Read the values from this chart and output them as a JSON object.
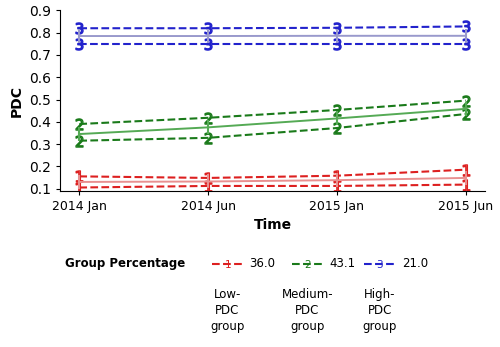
{
  "xlabel": "Time",
  "ylabel": "PDC",
  "ylim": [
    0.09,
    0.9
  ],
  "yticks": [
    0.1,
    0.2,
    0.3,
    0.4,
    0.5,
    0.6,
    0.7,
    0.8,
    0.9
  ],
  "x_labels": [
    "2014 Jan",
    "2014 Jun",
    "2015 Jan",
    "2015 Jun"
  ],
  "x_values": [
    0,
    1,
    2,
    3
  ],
  "groups": [
    {
      "name": "Low-PDC\ngroup",
      "percentage": "36.0",
      "dash_color": "#dd2020",
      "mean_color": "#e89090",
      "mean": [
        0.13,
        0.132,
        0.138,
        0.148
      ],
      "upper": [
        0.155,
        0.148,
        0.158,
        0.185
      ],
      "lower": [
        0.105,
        0.112,
        0.112,
        0.118
      ],
      "number": "1"
    },
    {
      "name": "Medium-PDC\ngroup",
      "percentage": "43.1",
      "dash_color": "#1a7a1a",
      "mean_color": "#55aa55",
      "mean": [
        0.345,
        0.375,
        0.415,
        0.458
      ],
      "upper": [
        0.39,
        0.418,
        0.453,
        0.495
      ],
      "lower": [
        0.315,
        0.328,
        0.372,
        0.435
      ],
      "number": "2"
    },
    {
      "name": "High-PDC\ngroup",
      "percentage": "21.0",
      "dash_color": "#2222cc",
      "mean_color": "#9999cc",
      "mean": [
        0.785,
        0.785,
        0.786,
        0.786
      ],
      "upper": [
        0.82,
        0.82,
        0.822,
        0.828
      ],
      "lower": [
        0.748,
        0.748,
        0.748,
        0.748
      ],
      "number": "3"
    }
  ],
  "figsize": [
    5.0,
    3.47
  ],
  "dpi": 100
}
